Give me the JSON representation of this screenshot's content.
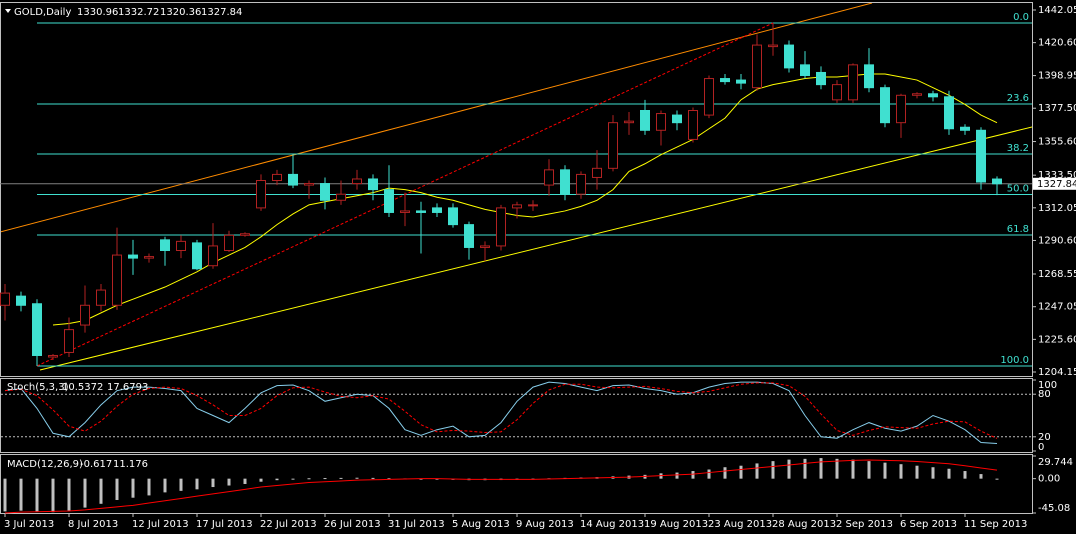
{
  "chart_data": [
    {
      "type": "candlestick",
      "title": "GOLD,Daily",
      "categories": [
        "3 Jul 2013",
        null,
        null,
        null,
        "8 Jul 2013",
        null,
        null,
        null,
        "12 Jul 2013",
        null,
        null,
        null,
        "17 Jul 2013",
        null,
        null,
        null,
        "22 Jul 2013",
        null,
        null,
        null,
        "26 Jul 2013",
        null,
        null,
        null,
        "31 Jul 2013",
        null,
        null,
        null,
        "5 Aug 2013",
        null,
        null,
        null,
        "9 Aug 2013",
        null,
        null,
        null,
        "14 Aug 2013",
        null,
        null,
        null,
        "19 Aug 2013",
        null,
        null,
        null,
        "23 Aug 2013",
        null,
        null,
        null,
        "28 Aug 2013",
        null,
        null,
        null,
        "2 Sep 2013",
        null,
        null,
        null,
        "6 Sep 2013",
        null,
        null,
        null,
        "11 Sep 2013",
        null,
        null
      ],
      "open": [
        1248,
        1254,
        1249,
        1214,
        1217,
        1235,
        1248,
        1248,
        1281,
        1279,
        1291,
        1284,
        1289,
        1274,
        1284,
        1294,
        1312,
        1330,
        1334,
        1327,
        1328,
        1317,
        1328,
        1331,
        1324,
        1309,
        1310,
        1312,
        1312,
        1301,
        1286,
        1287,
        1312,
        1314,
        1327,
        1337,
        1321,
        1332,
        1338,
        1368,
        1376,
        1363,
        1373,
        1357,
        1373,
        1397,
        1396,
        1391,
        1418,
        1419,
        1406,
        1401,
        1383,
        1383,
        1406,
        1391,
        1368,
        1386,
        1387,
        1385,
        1365,
        1363,
        1330.96
      ],
      "high": [
        1262,
        1257,
        1252,
        1216,
        1240,
        1261,
        1262,
        1299,
        1291,
        1282,
        1293,
        1294,
        1291,
        1302,
        1297,
        1296,
        1334,
        1337,
        1347,
        1330,
        1332,
        1330,
        1337,
        1334,
        1340,
        1322,
        1316,
        1315,
        1315,
        1303,
        1290,
        1314,
        1316,
        1317,
        1344,
        1340,
        1336,
        1350,
        1373,
        1375,
        1383,
        1376,
        1376,
        1378,
        1399,
        1400,
        1400,
        1426,
        1433.5,
        1422,
        1415,
        1405,
        1396,
        1407,
        1417,
        1393,
        1387,
        1388,
        1389,
        1389,
        1367,
        1365,
        1332.72
      ],
      "low": [
        1238,
        1244,
        1208.1,
        1212,
        1214,
        1230,
        1244,
        1245,
        1268,
        1276,
        1274,
        1279,
        1271,
        1272,
        1283,
        1293,
        1310,
        1327,
        1325,
        1318,
        1311,
        1314,
        1324,
        1317,
        1306,
        1300,
        1282,
        1306,
        1299,
        1278,
        1277,
        1284,
        1305,
        1310,
        1320,
        1317,
        1318,
        1324,
        1336,
        1360,
        1360,
        1353,
        1363,
        1355,
        1371,
        1393,
        1390,
        1389,
        1412,
        1401,
        1397,
        1390,
        1381,
        1381,
        1388,
        1365,
        1358,
        1384,
        1382,
        1360,
        1360,
        1324,
        1320.36
      ],
      "close": [
        1256,
        1248,
        1215,
        1215,
        1232,
        1248,
        1258,
        1281,
        1279,
        1280,
        1284,
        1290,
        1272,
        1287,
        1294,
        1295,
        1330,
        1334,
        1327,
        1328,
        1317,
        1321,
        1331,
        1324,
        1309,
        1310,
        1309,
        1309,
        1301,
        1286,
        1287,
        1312,
        1314,
        1314,
        1337,
        1321,
        1334,
        1338,
        1368,
        1369,
        1363,
        1374,
        1368,
        1376,
        1397,
        1395,
        1394,
        1419,
        1419,
        1404,
        1399,
        1393,
        1393,
        1406,
        1391,
        1368,
        1386,
        1387,
        1385,
        1364,
        1363,
        1329,
        1327.84
      ],
      "up_color": "#b22222",
      "down_color": "#40e0d0",
      "series": [
        {
          "color": "#ffff00",
          "values": [
            null,
            null,
            null,
            1235,
            1236,
            1238,
            1243,
            1248,
            1252,
            1256,
            1260,
            1265,
            1270,
            1276,
            1281,
            1286,
            1293,
            1301,
            1308,
            1314,
            1316,
            1318,
            1320,
            1322,
            1325,
            1324,
            1322,
            1319,
            1317,
            1314,
            1311,
            1309,
            1307,
            1306,
            1308,
            1310,
            1313,
            1317,
            1324,
            1336,
            1341,
            1347,
            1352,
            1357,
            1364,
            1371,
            1383,
            1390,
            1393,
            1395,
            1397,
            1398,
            1398,
            1399,
            1400,
            1400,
            1398,
            1396,
            1391,
            1386,
            1380,
            1373,
            1368
          ]
        }
      ],
      "ylim": [
        1201.52,
        1446.65
      ],
      "yticks": [
        1442.05,
        {
          "value": 1420.6,
          "label": "1420.60"
        },
        1398.95,
        {
          "value": 1377.5,
          "label": "1377.50"
        },
        {
          "value": 1355.6,
          "label": "1355.60"
        },
        {
          "value": 1333.5,
          "label": "1333.50"
        },
        1312.05,
        {
          "value": 1290.6,
          "label": "1290.60"
        },
        1268.55,
        1247.05,
        {
          "value": 1225.6,
          "label": "1225.60"
        },
        1204.15
      ],
      "fib_levels": [
        {
          "value": 0,
          "label": "0.0"
        },
        23.6,
        38.2,
        {
          "value": 50,
          "label": "50.0"
        },
        61.8,
        {
          "value": 100,
          "label": "100.0"
        }
      ],
      "fib_color": "#40e0d0"
    },
    {
      "type": "line",
      "title": "Stoch(5,3,3)",
      "ylim": [
        0,
        100
      ],
      "yticks": [
        100,
        80,
        20,
        0
      ],
      "levels": [
        80,
        20
      ],
      "series": [
        {
          "color": "#87ceeb",
          "values": [
            85,
            88,
            60,
            25,
            20,
            40,
            65,
            85,
            90,
            90,
            88,
            85,
            60,
            50,
            40,
            60,
            82,
            92,
            93,
            85,
            70,
            75,
            80,
            78,
            60,
            30,
            22,
            30,
            35,
            20,
            22,
            40,
            70,
            90,
            97,
            95,
            90,
            85,
            92,
            93,
            88,
            85,
            80,
            82,
            90,
            95,
            97,
            97,
            95,
            85,
            50,
            20,
            18,
            30,
            40,
            32,
            28,
            35,
            50,
            42,
            30,
            12,
            10.5372
          ]
        },
        {
          "color": "#ff0000",
          "dashed": true,
          "values": [
            85,
            87,
            78,
            58,
            35,
            28,
            42,
            63,
            80,
            88,
            90,
            88,
            78,
            65,
            50,
            50,
            60,
            78,
            89,
            90,
            83,
            77,
            75,
            78,
            73,
            56,
            37,
            27,
            29,
            28,
            26,
            27,
            44,
            67,
            86,
            94,
            94,
            90,
            89,
            90,
            91,
            88,
            84,
            82,
            84,
            89,
            94,
            96,
            96,
            92,
            77,
            52,
            29,
            22,
            29,
            34,
            33,
            32,
            38,
            42,
            41,
            28,
            17.6793
          ]
        }
      ]
    },
    {
      "type": "combo",
      "title": "MACD(12,26,9)",
      "ylim": [
        -45.08,
        29.744
      ],
      "yticks": [
        29.744,
        {
          "value": 0,
          "label": "0.00"
        },
        -45.08
      ],
      "series": [
        {
          "type": "bar",
          "color": "#c0c0c0",
          "values": [
            -43,
            -42,
            -43,
            -44,
            -42,
            -38,
            -33,
            -28,
            -25,
            -22,
            -18,
            -16,
            -14,
            -11,
            -9,
            -7,
            -4,
            -2,
            -1,
            0.5,
            0.8,
            1,
            1.2,
            1,
            0.5,
            0.3,
            -0.5,
            -1,
            -1.5,
            -2,
            -2,
            -1.8,
            -1.5,
            -1,
            0.5,
            1,
            1.5,
            2,
            3,
            4,
            5,
            7,
            8,
            10,
            12,
            15,
            17,
            20,
            23,
            25,
            26,
            27,
            26,
            25,
            23,
            21,
            19,
            17,
            15,
            13,
            10,
            6,
            -0.617
          ]
        },
        {
          "type": "line",
          "color": "#ff0000",
          "values": [
            -45,
            -44,
            -43.5,
            -43,
            -42.5,
            -41,
            -39,
            -37,
            -35,
            -32,
            -29,
            -26,
            -23,
            -20,
            -17,
            -14,
            -11,
            -9,
            -7,
            -5,
            -4,
            -3,
            -2,
            -1.5,
            -1,
            -0.5,
            0,
            0,
            -0.5,
            -1,
            -1,
            -1,
            -1,
            -1,
            -0.5,
            0,
            0.5,
            1,
            1.5,
            2,
            3,
            4,
            5,
            6,
            8,
            10,
            12,
            14,
            16,
            18,
            20,
            22,
            23,
            24,
            24.5,
            24,
            23.5,
            22.5,
            21,
            19.5,
            17,
            14,
            11.176
          ]
        }
      ]
    }
  ]
}
